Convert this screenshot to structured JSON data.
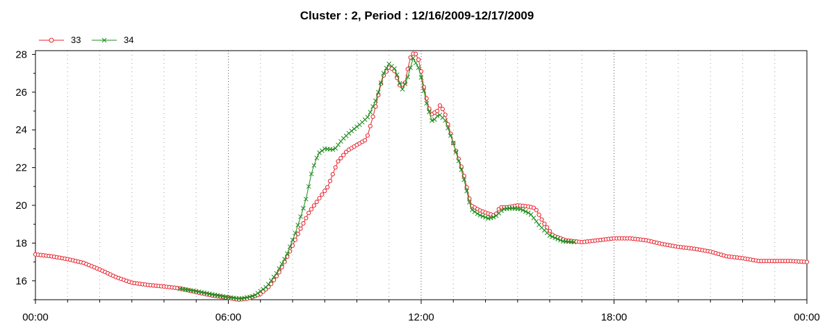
{
  "chart_data": {
    "type": "line",
    "title": "Cluster : 2, Period : 12/16/2009-12/17/2009",
    "xlabel": "",
    "ylabel": "",
    "x_range_hours": [
      0,
      24
    ],
    "ylim": [
      15,
      28.2
    ],
    "x_ticks": [
      "00:00",
      "06:00",
      "12:00",
      "18:00",
      "00:00"
    ],
    "y_ticks": [
      "16",
      "18",
      "20",
      "22",
      "24",
      "26",
      "28"
    ],
    "grid": true,
    "legend_position": "top-left",
    "series": [
      {
        "name": "33",
        "color": "#e8202a",
        "marker": "circle",
        "points": [
          [
            0,
            17.4
          ],
          [
            0.5,
            17.3
          ],
          [
            1.0,
            17.15
          ],
          [
            1.5,
            16.95
          ],
          [
            2.0,
            16.6
          ],
          [
            2.5,
            16.2
          ],
          [
            3.0,
            15.9
          ],
          [
            3.5,
            15.78
          ],
          [
            4.0,
            15.7
          ],
          [
            4.5,
            15.6
          ],
          [
            5.0,
            15.4
          ],
          [
            5.5,
            15.22
          ],
          [
            6.0,
            15.1
          ],
          [
            6.3,
            15.0
          ],
          [
            6.6,
            15.05
          ],
          [
            7.0,
            15.3
          ],
          [
            7.3,
            15.75
          ],
          [
            7.6,
            16.5
          ],
          [
            7.9,
            17.5
          ],
          [
            8.2,
            18.6
          ],
          [
            8.5,
            19.6
          ],
          [
            8.8,
            20.3
          ],
          [
            9.1,
            21.0
          ],
          [
            9.4,
            22.3
          ],
          [
            9.7,
            22.9
          ],
          [
            10.0,
            23.2
          ],
          [
            10.3,
            23.5
          ],
          [
            10.55,
            25.0
          ],
          [
            10.8,
            26.8
          ],
          [
            11.0,
            27.3
          ],
          [
            11.15,
            27.2
          ],
          [
            11.35,
            26.3
          ],
          [
            11.5,
            26.5
          ],
          [
            11.65,
            27.8
          ],
          [
            11.8,
            28.15
          ],
          [
            11.95,
            27.6
          ],
          [
            12.1,
            26.1
          ],
          [
            12.3,
            24.8
          ],
          [
            12.5,
            25.0
          ],
          [
            12.6,
            25.35
          ],
          [
            12.75,
            24.8
          ],
          [
            13.0,
            23.3
          ],
          [
            13.3,
            21.8
          ],
          [
            13.55,
            20.0
          ],
          [
            13.8,
            19.75
          ],
          [
            14.1,
            19.55
          ],
          [
            14.3,
            19.45
          ],
          [
            14.45,
            19.9
          ],
          [
            14.7,
            19.9
          ],
          [
            15.0,
            20.0
          ],
          [
            15.3,
            19.95
          ],
          [
            15.55,
            19.85
          ],
          [
            15.8,
            19.1
          ],
          [
            16.1,
            18.4
          ],
          [
            16.5,
            18.15
          ],
          [
            17.0,
            18.05
          ],
          [
            17.5,
            18.15
          ],
          [
            18.0,
            18.25
          ],
          [
            18.5,
            18.25
          ],
          [
            19.0,
            18.15
          ],
          [
            19.5,
            17.95
          ],
          [
            20.0,
            17.8
          ],
          [
            20.5,
            17.7
          ],
          [
            21.0,
            17.55
          ],
          [
            21.5,
            17.3
          ],
          [
            22.0,
            17.2
          ],
          [
            22.5,
            17.05
          ],
          [
            23.0,
            17.05
          ],
          [
            23.5,
            17.05
          ],
          [
            24.0,
            17.0
          ]
        ]
      },
      {
        "name": "34",
        "color": "#1a8c1a",
        "marker": "x",
        "points": [
          [
            4.5,
            15.58
          ],
          [
            5.0,
            15.45
          ],
          [
            5.5,
            15.28
          ],
          [
            6.0,
            15.12
          ],
          [
            6.4,
            15.05
          ],
          [
            6.8,
            15.2
          ],
          [
            7.2,
            15.7
          ],
          [
            7.5,
            16.4
          ],
          [
            7.8,
            17.3
          ],
          [
            8.1,
            18.6
          ],
          [
            8.4,
            20.2
          ],
          [
            8.6,
            21.8
          ],
          [
            8.8,
            22.75
          ],
          [
            9.0,
            23.0
          ],
          [
            9.3,
            22.95
          ],
          [
            9.55,
            23.5
          ],
          [
            9.8,
            23.9
          ],
          [
            10.1,
            24.3
          ],
          [
            10.35,
            24.7
          ],
          [
            10.6,
            25.6
          ],
          [
            10.85,
            27.1
          ],
          [
            11.0,
            27.5
          ],
          [
            11.2,
            27.2
          ],
          [
            11.4,
            26.1
          ],
          [
            11.55,
            26.6
          ],
          [
            11.75,
            27.8
          ],
          [
            11.95,
            27.2
          ],
          [
            12.15,
            25.5
          ],
          [
            12.35,
            24.4
          ],
          [
            12.55,
            24.85
          ],
          [
            12.75,
            24.5
          ],
          [
            13.0,
            23.3
          ],
          [
            13.3,
            21.6
          ],
          [
            13.55,
            19.8
          ],
          [
            13.8,
            19.5
          ],
          [
            14.1,
            19.3
          ],
          [
            14.3,
            19.4
          ],
          [
            14.55,
            19.8
          ],
          [
            14.8,
            19.85
          ],
          [
            15.1,
            19.8
          ],
          [
            15.4,
            19.55
          ],
          [
            15.7,
            18.9
          ],
          [
            16.0,
            18.4
          ],
          [
            16.4,
            18.1
          ],
          [
            16.8,
            18.05
          ]
        ]
      }
    ]
  }
}
